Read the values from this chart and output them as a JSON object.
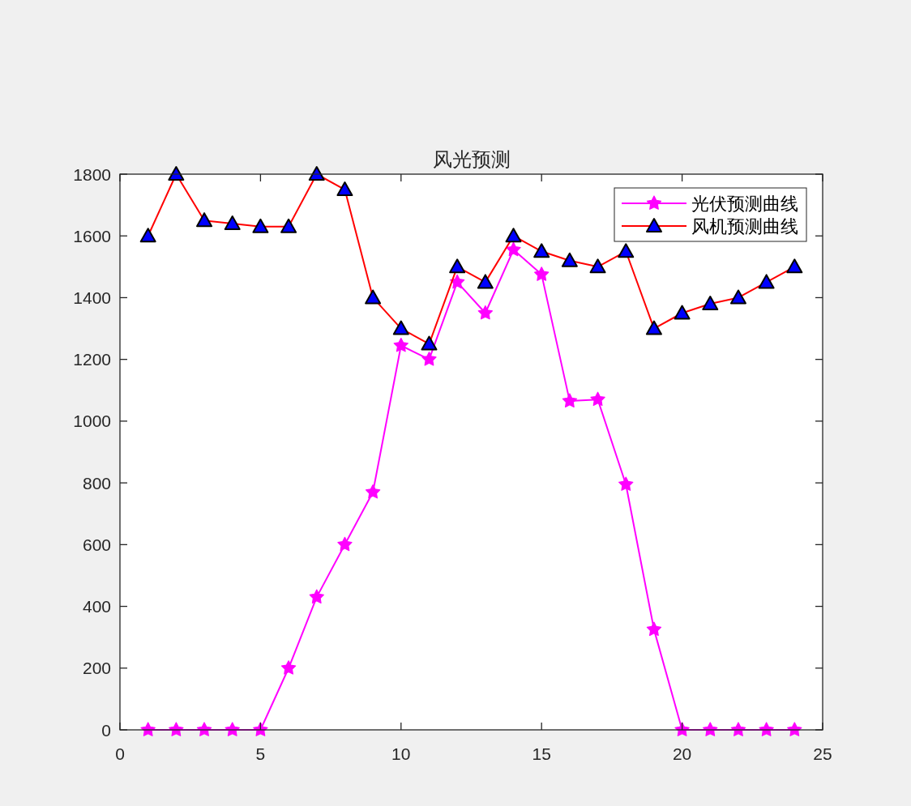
{
  "chart_data": {
    "type": "line",
    "title": "风光预测",
    "x": [
      1,
      2,
      3,
      4,
      5,
      6,
      7,
      8,
      9,
      10,
      11,
      12,
      13,
      14,
      15,
      16,
      17,
      18,
      19,
      20,
      21,
      22,
      23,
      24
    ],
    "series": [
      {
        "name": "光伏预测曲线",
        "color": "#ff00ff",
        "marker": "star",
        "values": [
          0,
          0,
          0,
          0,
          0,
          200,
          430,
          600,
          770,
          1245,
          1200,
          1450,
          1350,
          1555,
          1475,
          1065,
          1070,
          795,
          325,
          0,
          0,
          0,
          0,
          0
        ]
      },
      {
        "name": "风机预测曲线",
        "color": "#ff0000",
        "marker": "triangle",
        "values": [
          1600,
          1800,
          1650,
          1640,
          1630,
          1630,
          1800,
          1750,
          1400,
          1300,
          1250,
          1500,
          1450,
          1600,
          1550,
          1520,
          1500,
          1550,
          1300,
          1350,
          1380,
          1400,
          1450,
          1500
        ]
      }
    ],
    "xlim": [
      0,
      25
    ],
    "xticks": [
      0,
      5,
      10,
      15,
      20,
      25
    ],
    "ylim": [
      0,
      1800
    ],
    "yticks": [
      0,
      200,
      400,
      600,
      800,
      1000,
      1200,
      1400,
      1600,
      1800
    ],
    "grid": false,
    "legend": "top right",
    "line_style": "solid"
  }
}
